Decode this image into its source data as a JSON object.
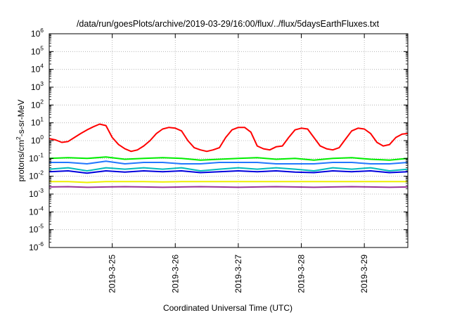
{
  "chart_data": {
    "type": "line",
    "title": "/data/run/goesPlots/archive/2019-03-29/16:00/flux/../flux/5daysEarthFluxes.txt",
    "xlabel": "Coordinated Universal Time (UTC)",
    "ylabel": {
      "base": "protons/cm",
      "sup": "2",
      "rest": "-s-sr-MeV"
    },
    "yscale": "log",
    "ylim_exponents": [
      -6,
      6
    ],
    "y_tick_exponents": [
      -6,
      -5,
      -4,
      -3,
      -2,
      -1,
      0,
      1,
      2,
      3,
      4,
      5,
      6
    ],
    "y_tick_base": "10",
    "xlim_days": [
      24.0,
      29.69
    ],
    "x_ticks": [
      {
        "day": 25,
        "label": "2019-3-25"
      },
      {
        "day": 26,
        "label": "2019-3-26"
      },
      {
        "day": 27,
        "label": "2019-3-27"
      },
      {
        "day": 28,
        "label": "2019-3-28"
      },
      {
        "day": 29,
        "label": "2019-3-29"
      }
    ],
    "grid": true,
    "legend": "none",
    "series": [
      {
        "color": "#ff0000",
        "x": [
          24.0,
          24.1,
          24.2,
          24.3,
          24.4,
          24.5,
          24.6,
          24.7,
          24.8,
          24.9,
          25.0,
          25.1,
          25.2,
          25.3,
          25.4,
          25.5,
          25.6,
          25.7,
          25.8,
          25.9,
          26.0,
          26.1,
          26.2,
          26.3,
          26.4,
          26.5,
          26.6,
          26.7,
          26.8,
          26.9,
          27.0,
          27.1,
          27.2,
          27.3,
          27.4,
          27.5,
          27.6,
          27.7,
          27.8,
          27.9,
          28.0,
          28.1,
          28.2,
          28.3,
          28.4,
          28.5,
          28.6,
          28.7,
          28.8,
          28.9,
          29.0,
          29.1,
          29.2,
          29.3,
          29.4,
          29.5,
          29.6,
          29.69
        ],
        "y": [
          1.3,
          1.1,
          0.8,
          0.9,
          1.5,
          2.5,
          4.0,
          6.0,
          8.5,
          7.0,
          1.5,
          0.6,
          0.35,
          0.25,
          0.3,
          0.5,
          1.0,
          2.5,
          4.5,
          5.5,
          5.0,
          3.5,
          1.0,
          0.4,
          0.3,
          0.25,
          0.3,
          0.4,
          1.5,
          4.0,
          5.5,
          5.5,
          3.0,
          0.5,
          0.35,
          0.3,
          0.45,
          0.5,
          1.5,
          4.0,
          5.0,
          4.5,
          1.5,
          0.5,
          0.35,
          0.3,
          0.4,
          1.2,
          3.5,
          5.0,
          4.5,
          2.5,
          0.8,
          0.5,
          0.6,
          1.5,
          2.3,
          2.5
        ]
      },
      {
        "color": "#00ee00",
        "x": [
          24.0,
          24.3,
          24.6,
          24.9,
          25.2,
          25.5,
          25.8,
          26.1,
          26.4,
          26.7,
          27.0,
          27.3,
          27.6,
          27.9,
          28.2,
          28.5,
          28.8,
          29.1,
          29.4,
          29.69
        ],
        "y": [
          0.1,
          0.11,
          0.1,
          0.12,
          0.09,
          0.1,
          0.11,
          0.1,
          0.08,
          0.09,
          0.1,
          0.11,
          0.09,
          0.1,
          0.08,
          0.1,
          0.11,
          0.09,
          0.08,
          0.1
        ]
      },
      {
        "color": "#2277ff",
        "x": [
          24.0,
          24.3,
          24.6,
          24.9,
          25.2,
          25.5,
          25.8,
          26.1,
          26.4,
          26.7,
          27.0,
          27.3,
          27.6,
          27.9,
          28.2,
          28.5,
          28.8,
          29.1,
          29.4,
          29.69
        ],
        "y": [
          0.06,
          0.06,
          0.05,
          0.07,
          0.05,
          0.06,
          0.06,
          0.05,
          0.05,
          0.06,
          0.06,
          0.06,
          0.05,
          0.05,
          0.05,
          0.06,
          0.06,
          0.05,
          0.05,
          0.06
        ]
      },
      {
        "color": "#00bbbb",
        "x": [
          24.0,
          24.3,
          24.6,
          24.9,
          25.2,
          25.5,
          25.8,
          26.1,
          26.4,
          26.7,
          27.0,
          27.3,
          27.6,
          27.9,
          28.2,
          28.5,
          28.8,
          29.1,
          29.4,
          29.69
        ],
        "y": [
          0.025,
          0.03,
          0.02,
          0.03,
          0.025,
          0.03,
          0.025,
          0.03,
          0.02,
          0.025,
          0.03,
          0.025,
          0.03,
          0.025,
          0.02,
          0.03,
          0.025,
          0.03,
          0.02,
          0.025
        ]
      },
      {
        "color": "#0000dd",
        "x": [
          24.0,
          24.3,
          24.6,
          24.9,
          25.2,
          25.5,
          25.8,
          26.1,
          26.4,
          26.7,
          27.0,
          27.3,
          27.6,
          27.9,
          28.2,
          28.5,
          28.8,
          29.1,
          29.4,
          29.69
        ],
        "y": [
          0.018,
          0.02,
          0.015,
          0.02,
          0.017,
          0.02,
          0.018,
          0.02,
          0.016,
          0.018,
          0.02,
          0.018,
          0.02,
          0.017,
          0.016,
          0.02,
          0.018,
          0.02,
          0.016,
          0.018
        ]
      },
      {
        "color": "#eeee00",
        "x": [
          24.0,
          24.3,
          24.6,
          24.9,
          25.2,
          25.5,
          25.8,
          26.1,
          26.4,
          26.7,
          27.0,
          27.3,
          27.6,
          27.9,
          28.2,
          28.5,
          28.8,
          29.1,
          29.4,
          29.69
        ],
        "y": [
          0.005,
          0.005,
          0.0045,
          0.005,
          0.005,
          0.005,
          0.0048,
          0.005,
          0.005,
          0.005,
          0.005,
          0.005,
          0.005,
          0.005,
          0.005,
          0.005,
          0.005,
          0.005,
          0.005,
          0.005
        ]
      },
      {
        "color": "#993399",
        "x": [
          24.0,
          24.3,
          24.6,
          24.9,
          25.2,
          25.5,
          25.8,
          26.1,
          26.4,
          26.7,
          27.0,
          27.3,
          27.6,
          27.9,
          28.2,
          28.5,
          28.8,
          29.1,
          29.4,
          29.69
        ],
        "y": [
          0.0025,
          0.0026,
          0.0024,
          0.0025,
          0.0026,
          0.0025,
          0.0024,
          0.0025,
          0.0026,
          0.0025,
          0.0024,
          0.0025,
          0.0026,
          0.0025,
          0.0024,
          0.0025,
          0.0026,
          0.0025,
          0.0024,
          0.0025
        ]
      }
    ]
  }
}
